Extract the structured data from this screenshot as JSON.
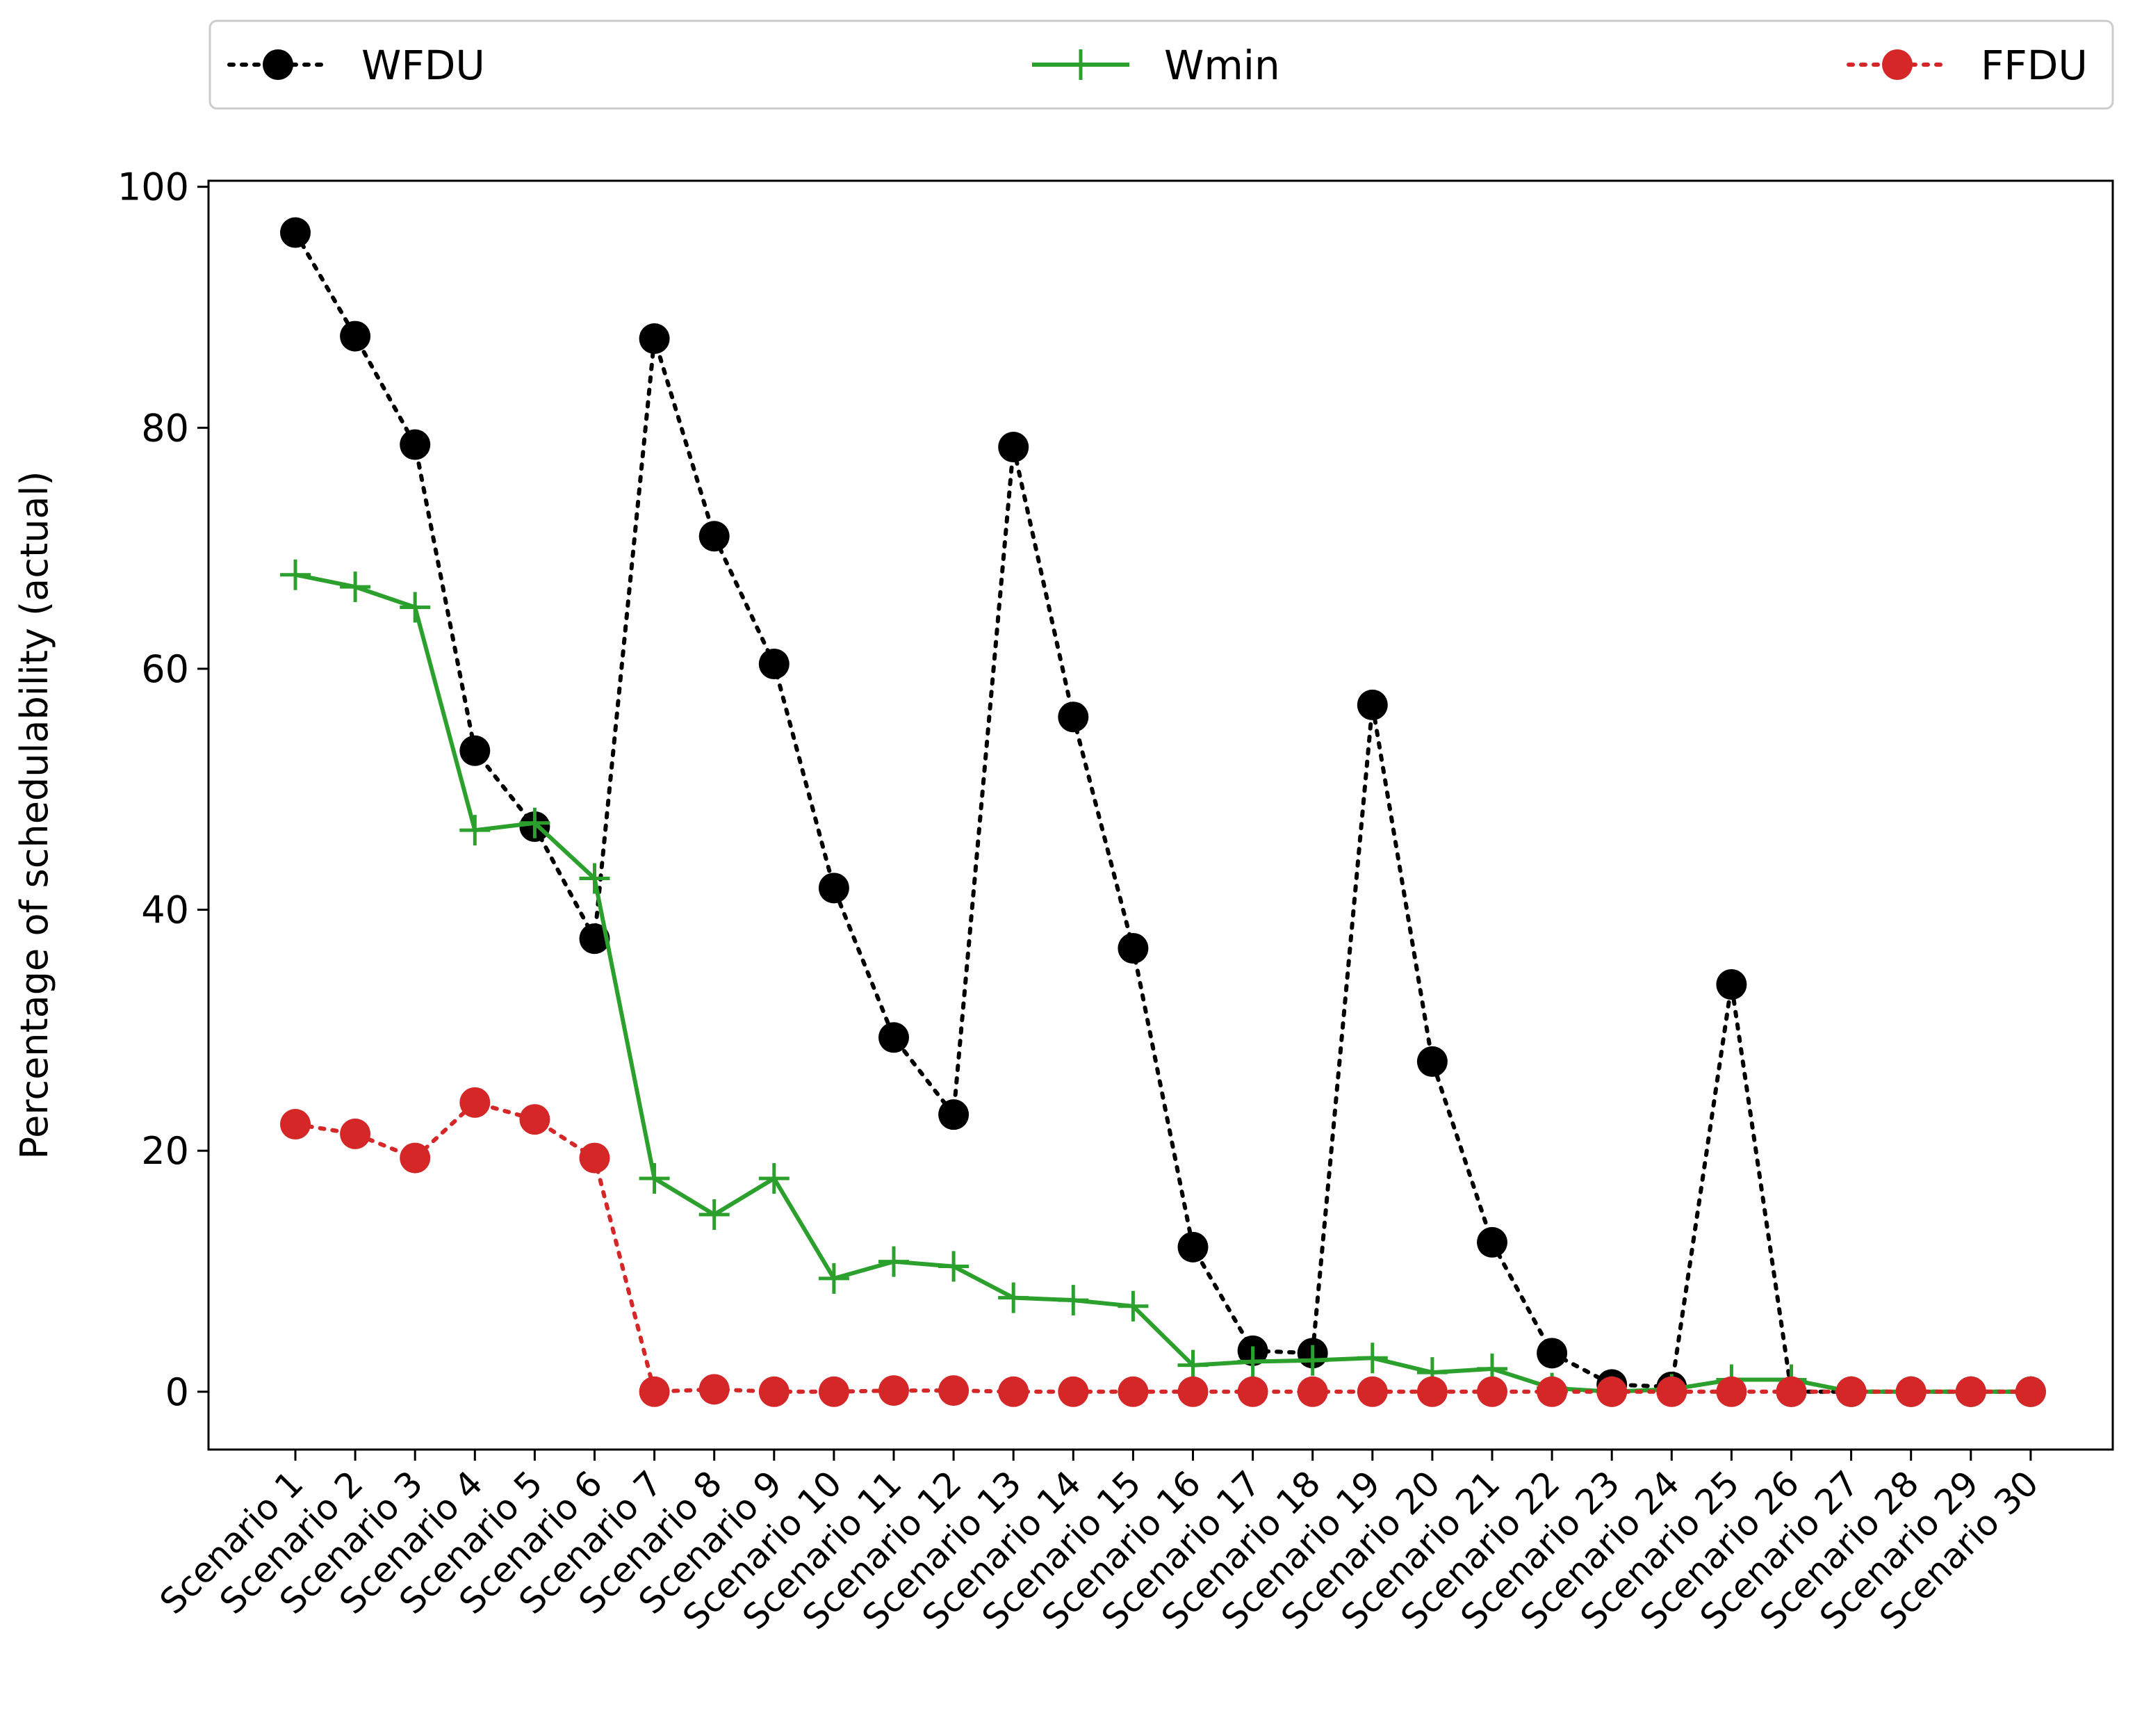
{
  "chart_data": {
    "type": "line",
    "title": "",
    "xlabel": "",
    "ylabel": "Percentage of schedulability (actual)",
    "ylim": [
      -4.8,
      100.5
    ],
    "yticks": [
      0,
      20,
      40,
      60,
      80,
      100
    ],
    "grid": false,
    "legend_position": "top (above plot, horizontal)",
    "categories": [
      "Scenario 1",
      "Scenario 2",
      "Scenario 3",
      "Scenario 4",
      "Scenario 5",
      "Scenario 6",
      "Scenario 7",
      "Scenario 8",
      "Scenario 9",
      "Scenario 10",
      "Scenario 11",
      "Scenario 12",
      "Scenario 13",
      "Scenario 14",
      "Scenario 15",
      "Scenario 16",
      "Scenario 17",
      "Scenario 18",
      "Scenario 19",
      "Scenario 20",
      "Scenario 21",
      "Scenario 22",
      "Scenario 23",
      "Scenario 24",
      "Scenario 25",
      "Scenario 26",
      "Scenario 27",
      "Scenario 28",
      "Scenario 29",
      "Scenario 30"
    ],
    "series": [
      {
        "name": "WFDU",
        "color": "#000000",
        "line": "dotted",
        "marker": "circle",
        "values": [
          96.2,
          87.6,
          78.6,
          53.2,
          46.9,
          37.6,
          87.4,
          71.0,
          60.4,
          41.8,
          29.4,
          23.0,
          78.4,
          56.0,
          36.8,
          12.0,
          3.4,
          3.2,
          57.0,
          27.4,
          12.4,
          3.2,
          0.6,
          0.4,
          33.8,
          0.0,
          0.0,
          0.0,
          0.0,
          0.0
        ]
      },
      {
        "name": "Wmin",
        "color": "#2ca02c",
        "line": "solid",
        "marker": "plus",
        "values": [
          67.8,
          66.8,
          65.1,
          46.6,
          47.2,
          42.6,
          17.7,
          14.7,
          17.7,
          9.4,
          10.8,
          10.4,
          7.8,
          7.6,
          7.1,
          2.2,
          2.5,
          2.6,
          2.8,
          1.6,
          1.9,
          0.3,
          0.0,
          0.2,
          1.0,
          1.0,
          0.0,
          0.0,
          0.0,
          0.0
        ]
      },
      {
        "name": "FFDU",
        "color": "#d62728",
        "line": "dotted",
        "marker": "circle",
        "values": [
          22.2,
          21.4,
          19.4,
          24.0,
          22.6,
          19.4,
          0.0,
          0.2,
          0.0,
          0.0,
          0.1,
          0.1,
          0.0,
          0.0,
          0.0,
          0.0,
          0.0,
          0.0,
          0.0,
          0.0,
          0.0,
          0.0,
          0.0,
          0.0,
          0.0,
          0.0,
          0.0,
          0.0,
          0.0,
          0.0
        ]
      }
    ]
  }
}
